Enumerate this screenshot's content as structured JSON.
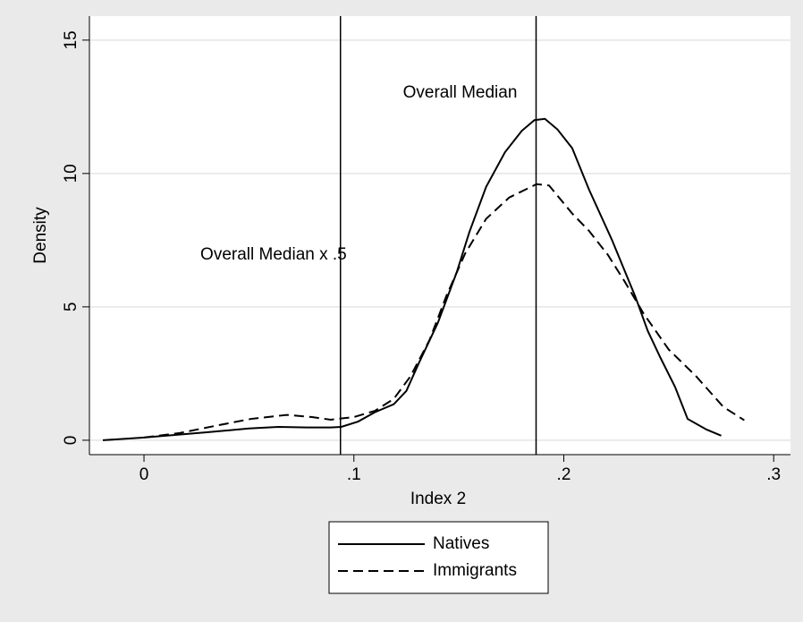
{
  "chart_data": {
    "type": "line",
    "xlabel": "Index 2",
    "ylabel": "Density",
    "xlim": [
      -0.026,
      0.308
    ],
    "ylim": [
      -0.54,
      15.9
    ],
    "xticks": [
      {
        "value": 0,
        "label": "0"
      },
      {
        "value": 0.1,
        "label": ".1"
      },
      {
        "value": 0.2,
        "label": ".2"
      },
      {
        "value": 0.3,
        "label": ".3"
      }
    ],
    "yticks": [
      0,
      5,
      10,
      15
    ],
    "grid": true,
    "vlines": [
      {
        "x": 0.0936,
        "label": "Overall Median x .5"
      },
      {
        "x": 0.1868,
        "label": "Overall Median"
      }
    ],
    "series": [
      {
        "name": "Natives",
        "color": "#000000",
        "dash": "solid",
        "x": [
          -0.0196,
          0,
          0.03,
          0.05,
          0.064,
          0.078,
          0.089,
          0.094,
          0.102,
          0.11,
          0.119,
          0.125,
          0.131,
          0.14,
          0.149,
          0.155,
          0.163,
          0.172,
          0.18,
          0.186,
          0.191,
          0.197,
          0.204,
          0.212,
          0.223,
          0.234,
          0.24,
          0.246,
          0.253,
          0.259,
          0.268,
          0.275
        ],
        "values": [
          0,
          0.1,
          0.3,
          0.44,
          0.5,
          0.48,
          0.48,
          0.5,
          0.7,
          1.05,
          1.35,
          1.85,
          2.9,
          4.4,
          6.3,
          7.8,
          9.5,
          10.8,
          11.6,
          12.0,
          12.05,
          11.65,
          10.95,
          9.4,
          7.5,
          5.4,
          4.1,
          3.1,
          2.0,
          0.8,
          0.4,
          0.17
        ]
      },
      {
        "name": "Immigrants",
        "color": "#000000",
        "dash": "dashed",
        "x": [
          0,
          0.017,
          0.034,
          0.051,
          0.068,
          0.08,
          0.089,
          0.1,
          0.11,
          0.119,
          0.127,
          0.136,
          0.144,
          0.153,
          0.163,
          0.174,
          0.187,
          0.193,
          0.204,
          0.212,
          0.221,
          0.229,
          0.238,
          0.25,
          0.263,
          0.276,
          0.286
        ],
        "values": [
          0.1,
          0.27,
          0.54,
          0.8,
          0.95,
          0.87,
          0.77,
          0.87,
          1.1,
          1.55,
          2.4,
          3.75,
          5.4,
          7.0,
          8.3,
          9.1,
          9.6,
          9.55,
          8.5,
          7.85,
          6.95,
          5.95,
          4.75,
          3.4,
          2.4,
          1.25,
          0.75
        ]
      }
    ]
  }
}
